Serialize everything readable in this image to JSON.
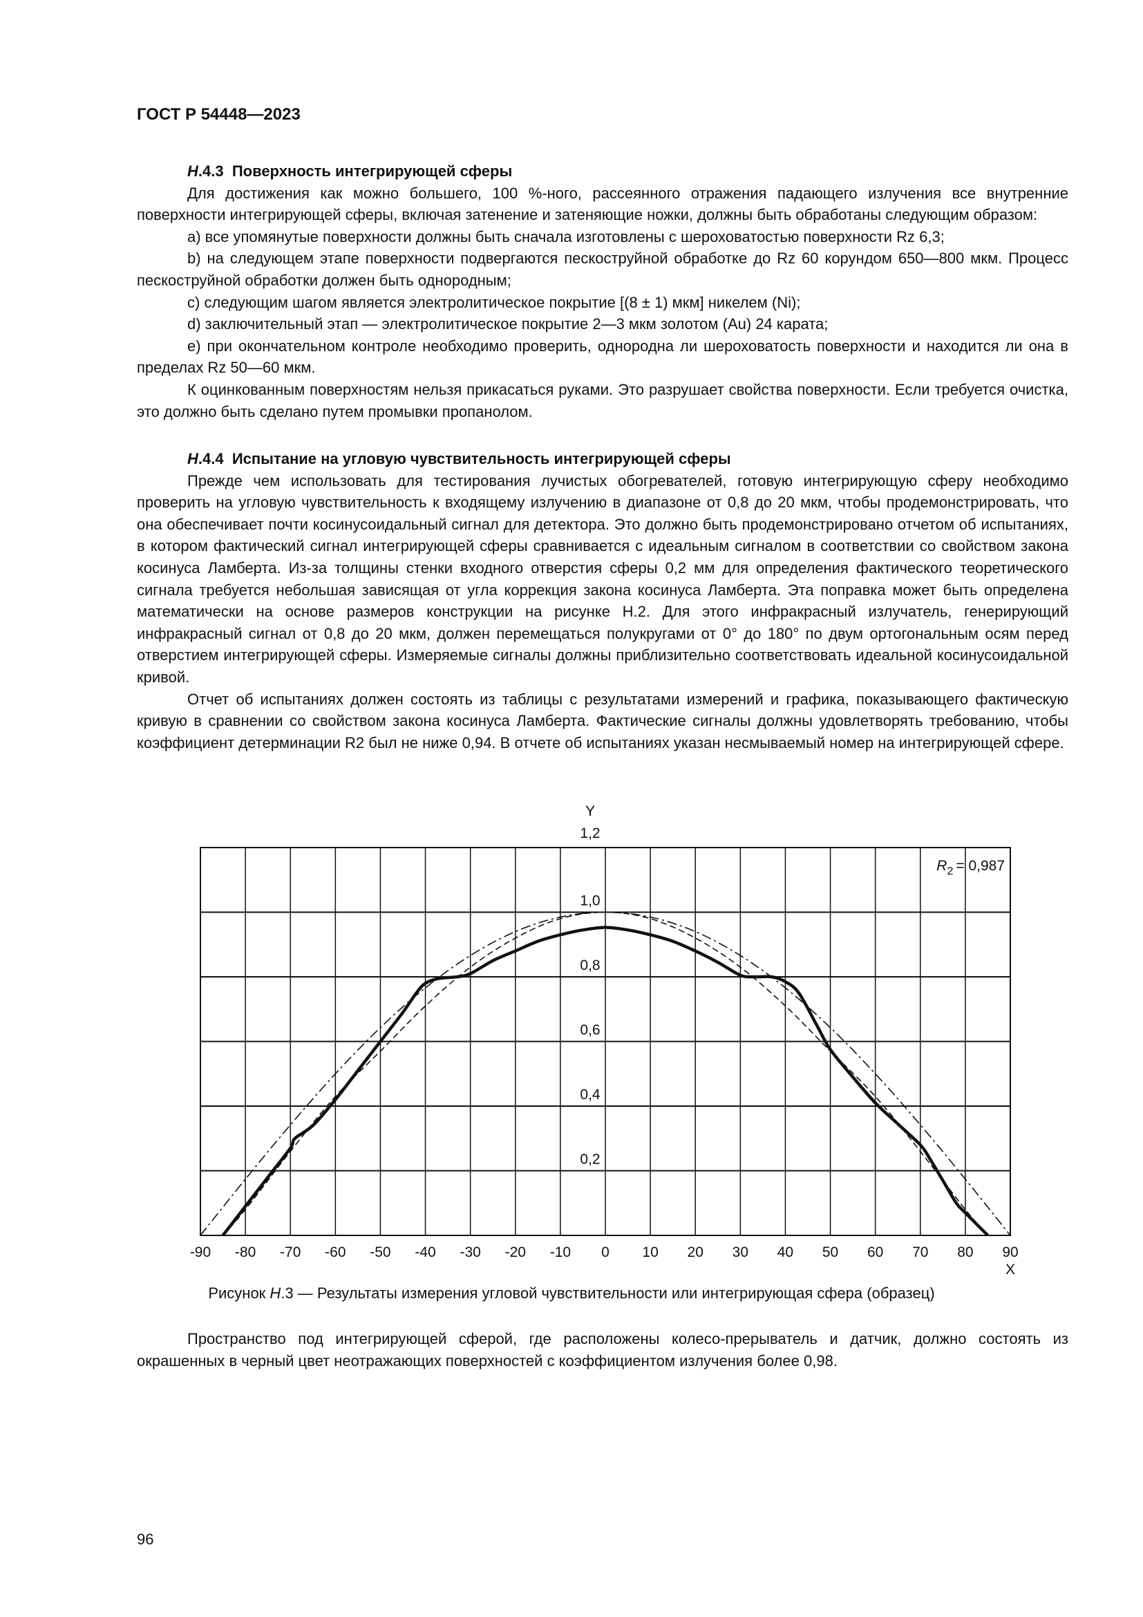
{
  "header": {
    "doc_id": "ГОСТ Р 54448—2023"
  },
  "section_443": {
    "number_prefix": "Н",
    "number_suffix": ".4.3",
    "title": "Поверхность интегрирующей сферы",
    "paragraphs": [
      "Для достижения как можно большего, 100 %-ного, рассеянного отражения падающего излучения все внутренние поверхности интегрирующей сферы, включая затенение и затеняющие ножки, должны быть обработаны следующим образом:",
      "a) все упомянутые поверхности должны быть сначала изготовлены с шероховатостью поверхности Rz 6,3;",
      "b) на следующем этапе поверхности подвергаются пескоструйной обработке до Rz 60 корундом 650—800 мкм. Процесс пескоструйной обработки должен быть однородным;",
      "c) следующим шагом является электролитическое покрытие [(8 ± 1) мкм] никелем (Ni);",
      "d) заключительный этап — электролитическое покрытие 2—3 мкм золотом (Au) 24 карата;",
      "e) при окончательном контроле необходимо проверить, однородна ли шероховатость поверхности и находится ли она в пределах Rz 50—60 мкм.",
      "К оцинкованным поверхностям нельзя прикасаться руками. Это разрушает свойства поверхности. Если требуется очистка, это должно быть сделано путем промывки пропанолом."
    ]
  },
  "section_444": {
    "number_prefix": "Н",
    "number_suffix": ".4.4",
    "title": "Испытание на угловую чувствительность интегрирующей сферы",
    "paragraphs": [
      "Прежде чем использовать для тестирования лучистых обогревателей, готовую интегрирующую сферу необходимо проверить на угловую чувствительность к входящему излучению в диапазоне от 0,8 до 20 мкм, чтобы продемонстрировать, что она обеспечивает почти косинусоидальный сигнал для детектора. Это должно быть продемонстрировано отчетом об испытаниях, в котором фактический сигнал интегрирующей сферы сравнивается с идеальным сигналом в соответствии со свойством закона косинуса Ламберта. Из-за толщины стенки входного отверстия сферы 0,2 мм для определения фактического теоретического сигнала требуется небольшая зависящая от угла коррекция закона косинуса Ламберта. Эта поправка может быть определена математически на основе размеров конструкции на рисунке Н.2. Для этого инфракрасный излучатель, генерирующий инфракрасный сигнал от 0,8 до 20 мкм, должен перемещаться полукругами от 0° до 180° по двум ортогональным осям перед отверстием интегрирующей сферы. Измеряемые сигналы должны приблизительно соответствовать идеальной косинусоидальной кривой.",
      "Отчет об испытаниях должен состоять из таблицы с результатами измерений и графика, показывающего фактическую кривую в сравнении со свойством закона косинуса Ламберта. Фактические сигналы должны удовлетворять требованию, чтобы коэффициент детерминации R2 был не ниже 0,94. В отчете об испытаниях указан несмываемый номер на интегрирующей сфере."
    ]
  },
  "chart_data": {
    "type": "line",
    "xlabel": "X",
    "ylabel": "Y",
    "xlim": [
      -90,
      90
    ],
    "ylim": [
      0,
      1.2
    ],
    "grid": true,
    "x_ticks": [
      "-90",
      "-80",
      "-70",
      "-60",
      "-50",
      "-40",
      "-30",
      "-20",
      "-10",
      "0",
      "10",
      "20",
      "30",
      "40",
      "50",
      "60",
      "70",
      "80",
      "90"
    ],
    "y_ticks": [
      "0,2",
      "0,4",
      "0,6",
      "0,8",
      "1,0",
      "1,2"
    ],
    "annotation": {
      "r_label": "R",
      "r_sub": "2",
      "r_value": "= 0,987"
    },
    "series": [
      {
        "style": "solid-thick",
        "x": [
          -85,
          -80,
          -75,
          -70,
          -69,
          -65,
          -60,
          -55,
          -50,
          -45,
          -42,
          -40,
          -37,
          -33,
          -30,
          -25,
          -20,
          -15,
          -10,
          -5,
          0,
          5,
          10,
          15,
          20,
          25,
          30,
          33,
          37,
          40,
          43,
          47,
          50,
          55,
          60,
          65,
          70,
          72,
          75,
          78,
          80,
          85
        ],
        "y": [
          0,
          0.09,
          0.18,
          0.27,
          0.3,
          0.34,
          0.42,
          0.51,
          0.6,
          0.69,
          0.75,
          0.78,
          0.795,
          0.8,
          0.81,
          0.85,
          0.88,
          0.91,
          0.93,
          0.945,
          0.953,
          0.945,
          0.93,
          0.91,
          0.88,
          0.845,
          0.805,
          0.8,
          0.8,
          0.785,
          0.75,
          0.65,
          0.575,
          0.49,
          0.41,
          0.345,
          0.28,
          0.24,
          0.17,
          0.1,
          0.07,
          0
        ]
      },
      {
        "style": "dashed",
        "x": [
          -85,
          -80,
          -70,
          -60,
          -50,
          -40,
          -30,
          -20,
          -10,
          0,
          10,
          20,
          30,
          40,
          50,
          60,
          70,
          80,
          85
        ],
        "y": [
          0,
          0.08,
          0.26,
          0.43,
          0.57,
          0.71,
          0.83,
          0.92,
          0.98,
          1.0,
          0.98,
          0.92,
          0.83,
          0.71,
          0.57,
          0.43,
          0.26,
          0.08,
          0
        ]
      },
      {
        "style": "dash-dot",
        "x": [
          -90,
          -80,
          -70,
          -60,
          -50,
          -40,
          -30,
          -20,
          -10,
          0,
          10,
          20,
          30,
          40,
          50,
          60,
          70,
          80,
          90
        ],
        "y": [
          0,
          0.174,
          0.342,
          0.5,
          0.643,
          0.766,
          0.866,
          0.94,
          0.985,
          1.0,
          0.985,
          0.94,
          0.866,
          0.766,
          0.643,
          0.5,
          0.342,
          0.174,
          0
        ]
      }
    ]
  },
  "figure_caption": {
    "prefix": "Рисунок ",
    "letter": "Н",
    "rest": ".3 — Результаты измерения угловой чувствительности или интегрирующая сфера (образец)"
  },
  "closing_paragraph": "Пространство под интегрирующей сферой, где расположены колесо-прерыватель и датчик, должно состоять из окрашенных в черный цвет неотражающих поверхностей с коэффициентом излучения более 0,98.",
  "page_number": "96"
}
